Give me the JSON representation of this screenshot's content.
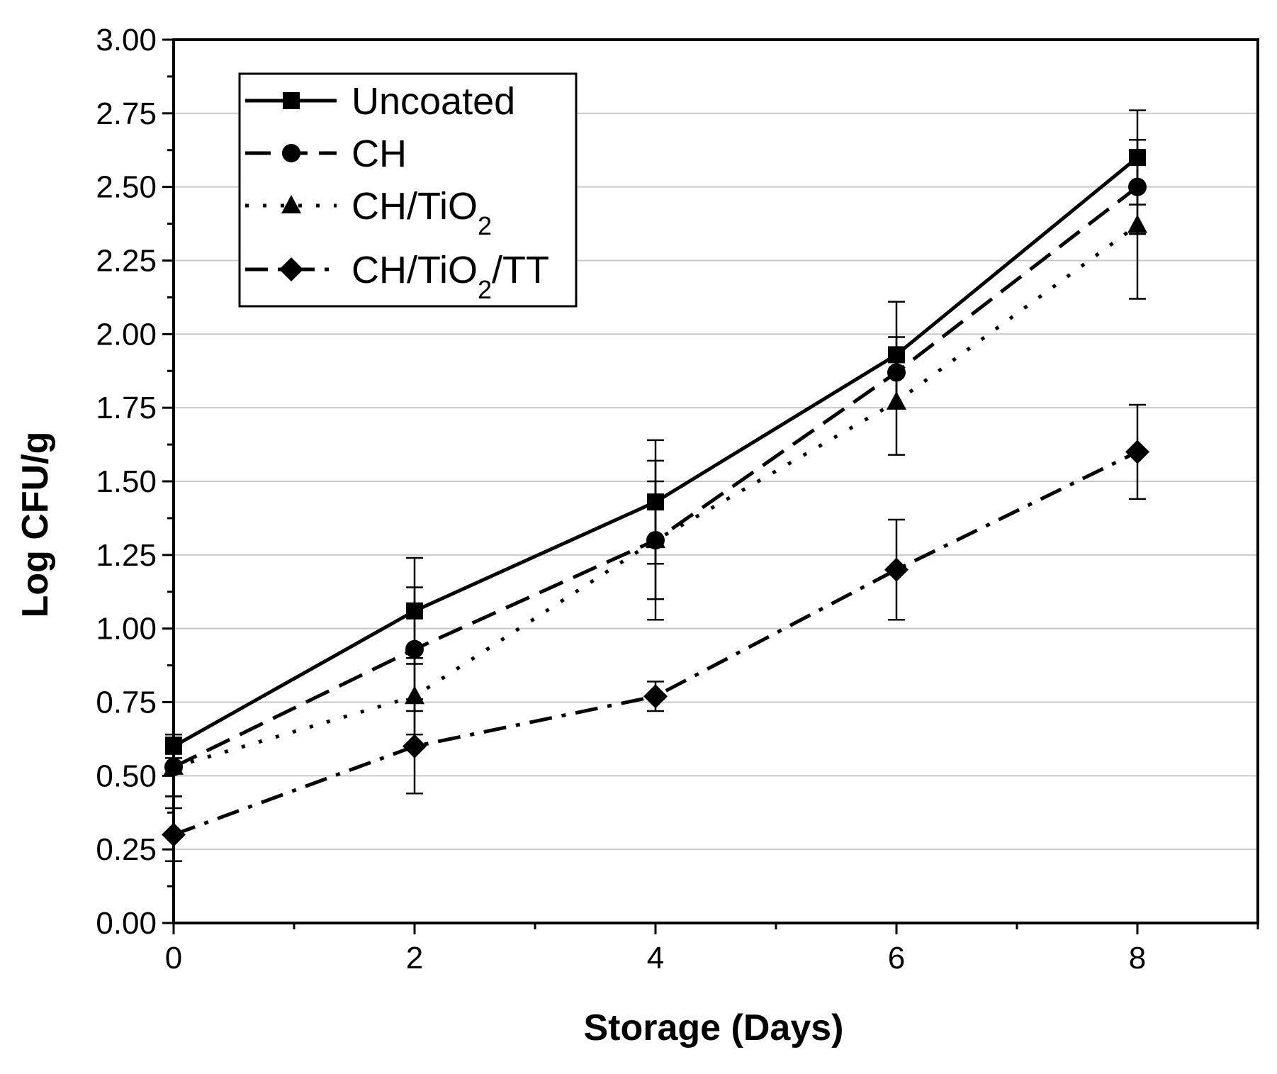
{
  "chart_data": {
    "type": "line",
    "xlabel": "Storage (Days)",
    "ylabel": "Log CFU/g",
    "xlim": [
      0,
      9
    ],
    "ylim": [
      0,
      3
    ],
    "x_ticks": [
      0,
      2,
      4,
      6,
      8
    ],
    "x_tick_labels": [
      "0",
      "2",
      "4",
      "6",
      "8"
    ],
    "y_ticks": [
      0,
      0.25,
      0.5,
      0.75,
      1,
      1.25,
      1.5,
      1.75,
      2,
      2.25,
      2.5,
      2.75,
      3
    ],
    "y_tick_labels": [
      "0.00",
      "0.25",
      "0.50",
      "0.75",
      "1.00",
      "1.25",
      "1.50",
      "1.75",
      "2.00",
      "2.25",
      "2.50",
      "2.75",
      "3.00"
    ],
    "grid": "horizontal",
    "legend_position": "top-left",
    "x": [
      0,
      2,
      4,
      6,
      8
    ],
    "series": [
      {
        "name": "Uncoated",
        "legend_main": "Uncoated",
        "legend_sub": "",
        "legend_tail": "",
        "marker": "square",
        "line_style": "solid",
        "values": [
          0.6,
          1.06,
          1.43,
          1.93,
          2.6
        ],
        "errors": [
          0.04,
          0.18,
          0.21,
          0.18,
          0.16
        ]
      },
      {
        "name": "CH",
        "legend_main": "CH",
        "legend_sub": "",
        "legend_tail": "",
        "marker": "circle",
        "line_style": "dashed",
        "values": [
          0.53,
          0.93,
          1.3,
          1.87,
          2.5
        ],
        "errors": [
          0.1,
          0.21,
          0.2,
          0.12,
          0.16
        ]
      },
      {
        "name": "CH/TiO2",
        "legend_main": "CH/TiO",
        "legend_sub": "2",
        "legend_tail": "",
        "marker": "triangle",
        "line_style": "dotted",
        "values": [
          0.53,
          0.77,
          1.3,
          1.77,
          2.37
        ],
        "errors": [
          0.1,
          0.13,
          0.27,
          0.18,
          0.25
        ]
      },
      {
        "name": "CH/TiO2/TT",
        "legend_main": "CH/TiO",
        "legend_sub": "2",
        "legend_tail": "/TT",
        "marker": "diamond",
        "line_style": "dashdot",
        "values": [
          0.3,
          0.6,
          0.77,
          1.2,
          1.6
        ],
        "errors": [
          0.09,
          0.16,
          0.05,
          0.17,
          0.16
        ]
      }
    ]
  }
}
